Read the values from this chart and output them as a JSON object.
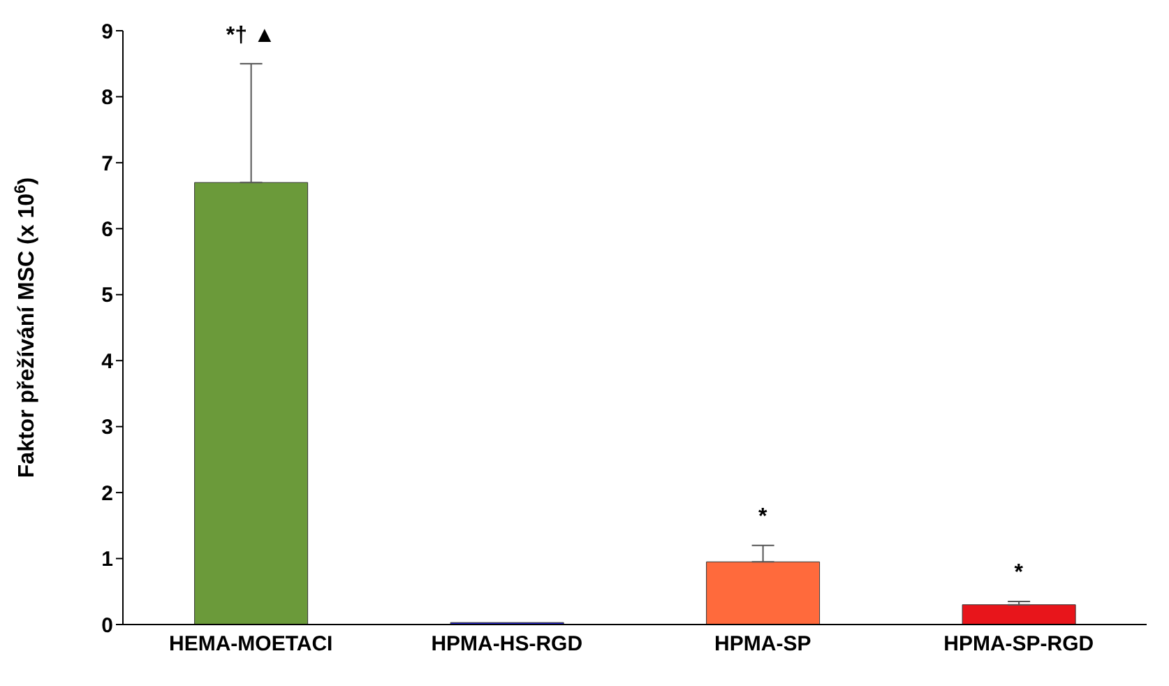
{
  "chart_data": {
    "type": "bar",
    "categories": [
      "HEMA-MOETACI",
      "HPMA-HS-RGD",
      "HPMA-SP",
      "HPMA-SP-RGD"
    ],
    "values": [
      6.7,
      0.03,
      0.95,
      0.3
    ],
    "colors": [
      "#6b9a3a",
      "#1f1fd0",
      "#ff6a3c",
      "#e8151b"
    ],
    "errors": [
      [
        6.7,
        8.5
      ],
      null,
      [
        0.95,
        1.2
      ],
      [
        0.3,
        0.35
      ]
    ],
    "ylabel": "Faktor přežívání MSC (x 10$^{6}$)",
    "ylim": [
      0,
      9
    ],
    "yticks": [
      0,
      1,
      2,
      3,
      4,
      5,
      6,
      7,
      8,
      9
    ],
    "grid": false,
    "legend": false,
    "annotations": [
      {
        "text": "*† ▲",
        "x": "HEMA-MOETACI",
        "y": 8.5
      },
      {
        "text": "*",
        "x": "HPMA-SP",
        "y": 1.2
      },
      {
        "text": "*",
        "x": "HPMA-SP-RGD",
        "y": 0.35
      }
    ]
  }
}
